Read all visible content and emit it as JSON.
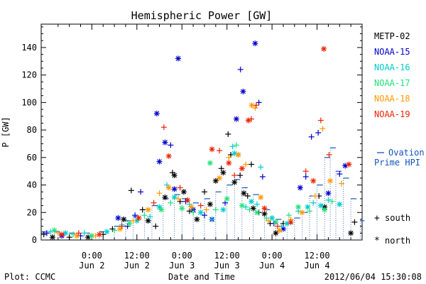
{
  "chart_data": {
    "type": "scatter",
    "title": "Hemispheric Power [GW]",
    "xlabel": "Date and Time",
    "ylabel": "P [GW]",
    "ylim": [
      0,
      157
    ],
    "xlim_hours": [
      -13.5,
      72
    ],
    "yticks": [
      0,
      20,
      40,
      60,
      80,
      100,
      120,
      140
    ],
    "xticks": [
      {
        "h": 0,
        "time": "0:00",
        "day": "Jun 2"
      },
      {
        "h": 12,
        "time": "12:00",
        "day": "Jun 2"
      },
      {
        "h": 24,
        "time": "0:00",
        "day": "Jun 3"
      },
      {
        "h": 36,
        "time": "12:00",
        "day": "Jun 3"
      },
      {
        "h": 48,
        "time": "0:00",
        "day": "Jun 4"
      },
      {
        "h": 60,
        "time": "12:00",
        "day": "Jun 4"
      }
    ],
    "grid": false,
    "legend_position": "right",
    "footer_left": "Plot: CCMC",
    "footer_right": "2012/06/04 15:30:08",
    "ovation_label_line1": "Ovation",
    "ovation_label_line2": "Prime HPI",
    "marker_legend": [
      {
        "symbol": "+",
        "label": "south"
      },
      {
        "symbol": "*",
        "label": "north"
      }
    ],
    "series": [
      {
        "name": "METP-02",
        "color": "#000000",
        "points": [
          [
            -12.8,
            4,
            "+"
          ],
          [
            -10.5,
            2,
            "*"
          ],
          [
            -6,
            2,
            "+"
          ],
          [
            -1,
            2,
            "*"
          ],
          [
            3,
            4,
            "+"
          ],
          [
            5.5,
            8,
            "+"
          ],
          [
            8.5,
            15,
            "*"
          ],
          [
            10.5,
            36,
            "+"
          ],
          [
            13.5,
            22,
            "+"
          ],
          [
            15,
            14,
            "*"
          ],
          [
            17,
            10,
            "+"
          ],
          [
            19.5,
            31,
            "*"
          ],
          [
            21.5,
            49,
            "+"
          ],
          [
            22,
            47,
            "*"
          ],
          [
            23.5,
            28,
            "+"
          ],
          [
            24.5,
            35,
            "*"
          ],
          [
            26,
            21,
            "+"
          ],
          [
            28,
            15,
            "*"
          ],
          [
            30,
            35,
            "+"
          ],
          [
            31.5,
            26,
            "*"
          ],
          [
            33,
            43,
            "*"
          ],
          [
            34.5,
            52,
            "+"
          ],
          [
            35,
            49,
            "*"
          ],
          [
            36.3,
            77,
            "+"
          ],
          [
            37,
            62,
            "+"
          ],
          [
            38,
            42,
            "*"
          ],
          [
            39.5,
            47,
            "+"
          ],
          [
            40.5,
            34,
            "*"
          ],
          [
            41.5,
            32,
            "+"
          ],
          [
            42.5,
            55,
            "+"
          ],
          [
            43,
            23,
            "*"
          ],
          [
            44.5,
            20,
            "+"
          ],
          [
            46,
            19,
            "*"
          ],
          [
            47.5,
            12,
            "+"
          ],
          [
            49,
            5,
            "*"
          ],
          [
            51,
            12,
            "+"
          ],
          [
            60.5,
            32,
            "+"
          ],
          [
            62,
            24,
            "*"
          ],
          [
            69,
            5,
            "*"
          ],
          [
            70,
            13,
            "+"
          ]
        ]
      },
      {
        "name": "NOAA-15",
        "color": "#0000cc",
        "points": [
          [
            -12,
            5,
            "+"
          ],
          [
            -8,
            3,
            "*"
          ],
          [
            -3,
            3,
            "+"
          ],
          [
            7,
            16,
            "*"
          ],
          [
            9.5,
            10,
            "+"
          ],
          [
            11.5,
            18,
            "+"
          ],
          [
            13,
            35,
            "+"
          ],
          [
            17.3,
            92,
            "*"
          ],
          [
            18,
            57,
            "*"
          ],
          [
            19.5,
            71,
            "*"
          ],
          [
            21,
            69,
            "+"
          ],
          [
            22,
            37,
            "*"
          ],
          [
            23,
            132,
            "*"
          ],
          [
            25,
            28,
            "+"
          ],
          [
            27,
            22,
            "*"
          ],
          [
            30,
            18,
            "+"
          ],
          [
            32,
            15,
            "*"
          ],
          [
            35.5,
            27,
            "+"
          ],
          [
            38.5,
            88,
            "*"
          ],
          [
            39.6,
            124,
            "+"
          ],
          [
            40.3,
            108,
            "*"
          ],
          [
            43.5,
            143,
            "*"
          ],
          [
            44.5,
            100,
            "+"
          ],
          [
            45.5,
            46,
            "+"
          ],
          [
            48.5,
            12,
            "+"
          ],
          [
            51,
            8,
            "*"
          ],
          [
            55.5,
            38,
            "*"
          ],
          [
            57,
            46,
            "+"
          ],
          [
            58.5,
            75,
            "+"
          ],
          [
            60.3,
            78,
            "+"
          ],
          [
            63,
            34,
            "*"
          ],
          [
            66,
            48,
            "+"
          ],
          [
            67.5,
            54,
            "*"
          ]
        ]
      },
      {
        "name": "NOAA-16",
        "color": "#00cccc",
        "points": [
          [
            -11,
            6,
            "+"
          ],
          [
            -7,
            5,
            "*"
          ],
          [
            -2,
            5,
            "+"
          ],
          [
            4,
            6,
            "*"
          ],
          [
            8,
            11,
            "+"
          ],
          [
            12,
            14,
            "*"
          ],
          [
            15.5,
            17,
            "+"
          ],
          [
            18,
            24,
            "*"
          ],
          [
            20,
            40,
            "+"
          ],
          [
            22,
            31,
            "*"
          ],
          [
            26,
            26,
            "+"
          ],
          [
            29,
            20,
            "*"
          ],
          [
            32,
            15,
            "+"
          ],
          [
            35,
            22,
            "*"
          ],
          [
            37.5,
            68,
            "+"
          ],
          [
            38,
            63,
            "*"
          ],
          [
            39,
            62,
            "*"
          ],
          [
            41,
            24,
            "+"
          ],
          [
            42.5,
            28,
            "*"
          ],
          [
            44,
            26,
            "+"
          ],
          [
            45,
            53,
            "+"
          ],
          [
            48,
            16,
            "*"
          ],
          [
            50.5,
            10,
            "+"
          ],
          [
            52,
            12,
            "*"
          ],
          [
            55,
            21,
            "+"
          ],
          [
            57.5,
            24,
            "*"
          ],
          [
            59,
            27,
            "+"
          ],
          [
            61,
            25,
            "*"
          ],
          [
            63,
            29,
            "+"
          ],
          [
            66,
            26,
            "*"
          ]
        ]
      },
      {
        "name": "NOAA-17",
        "color": "#22e07a",
        "points": [
          [
            -10,
            7,
            "*"
          ],
          [
            -5,
            4,
            "+"
          ],
          [
            0,
            3,
            "*"
          ],
          [
            6,
            7,
            "+"
          ],
          [
            10,
            12,
            "*"
          ],
          [
            14,
            18,
            "+"
          ],
          [
            18.5,
            22,
            "*"
          ],
          [
            21,
            27,
            "+"
          ],
          [
            24,
            23,
            "*"
          ],
          [
            27,
            20,
            "+"
          ],
          [
            31.5,
            56,
            "*"
          ],
          [
            33,
            22,
            "+"
          ],
          [
            36,
            30,
            "*"
          ],
          [
            38.5,
            69,
            "+"
          ],
          [
            40,
            25,
            "*"
          ],
          [
            42,
            22,
            "+"
          ],
          [
            44,
            20,
            "*"
          ],
          [
            46.5,
            16,
            "+"
          ],
          [
            49,
            13,
            "*"
          ],
          [
            52.5,
            18,
            "+"
          ],
          [
            55,
            24,
            "*"
          ],
          [
            58,
            21,
            "+"
          ],
          [
            62,
            22,
            "*"
          ],
          [
            64,
            28,
            "+"
          ]
        ]
      },
      {
        "name": "NOAA-18",
        "color": "#ff9900",
        "points": [
          [
            -9,
            5,
            "+"
          ],
          [
            -4,
            3,
            "*"
          ],
          [
            1,
            3,
            "+"
          ],
          [
            7.5,
            8,
            "*"
          ],
          [
            11,
            14,
            "+"
          ],
          [
            15,
            22,
            "*"
          ],
          [
            18,
            34,
            "+"
          ],
          [
            20.5,
            38,
            "*"
          ],
          [
            23,
            30,
            "+"
          ],
          [
            26.5,
            24,
            "*"
          ],
          [
            30.5,
            22,
            "+"
          ],
          [
            34,
            45,
            "*"
          ],
          [
            36.5,
            60,
            "+"
          ],
          [
            39,
            62,
            "*"
          ],
          [
            41,
            55,
            "+"
          ],
          [
            42.6,
            98,
            "*"
          ],
          [
            43.5,
            96,
            "+"
          ],
          [
            45,
            31,
            "*"
          ],
          [
            47,
            14,
            "+"
          ],
          [
            50,
            7,
            "*"
          ],
          [
            53,
            15,
            "+"
          ],
          [
            56,
            20,
            "*"
          ],
          [
            59.5,
            32,
            "+"
          ],
          [
            61.5,
            81,
            "+"
          ],
          [
            63.5,
            43,
            "*"
          ],
          [
            66.5,
            41,
            "+"
          ]
        ]
      },
      {
        "name": "NOAA-19",
        "color": "#ee2200",
        "points": [
          [
            -8,
            4,
            "*"
          ],
          [
            -3.5,
            5,
            "+"
          ],
          [
            2,
            4,
            "*"
          ],
          [
            8,
            10,
            "+"
          ],
          [
            12.5,
            16,
            "*"
          ],
          [
            16.5,
            27,
            "+"
          ],
          [
            19.2,
            82,
            "+"
          ],
          [
            20.5,
            61,
            "*"
          ],
          [
            23.5,
            38,
            "+"
          ],
          [
            25.5,
            29,
            "*"
          ],
          [
            29,
            25,
            "+"
          ],
          [
            32,
            66,
            "*"
          ],
          [
            34,
            65,
            "+"
          ],
          [
            36.5,
            56,
            "*"
          ],
          [
            38,
            47,
            "+"
          ],
          [
            40,
            52,
            "*"
          ],
          [
            41.7,
            87,
            "*"
          ],
          [
            42.5,
            88,
            "+"
          ],
          [
            43.8,
            98,
            "+"
          ],
          [
            46,
            23,
            "*"
          ],
          [
            49.5,
            10,
            "+"
          ],
          [
            53,
            13,
            "*"
          ],
          [
            57,
            50,
            "+"
          ],
          [
            59,
            43,
            "*"
          ],
          [
            61,
            87,
            "+"
          ],
          [
            61.8,
            139,
            "*"
          ],
          [
            63.2,
            62,
            "+"
          ],
          [
            68.5,
            55,
            "*"
          ]
        ]
      },
      {
        "name": "Ovation Prime HPI",
        "color": "#1155bb",
        "points": [
          [
            -13.5,
            6,
            "-"
          ],
          [
            -10,
            6,
            "-"
          ],
          [
            -6,
            5,
            "-"
          ],
          [
            -2,
            5,
            "-"
          ],
          [
            2,
            6,
            "-"
          ],
          [
            6,
            10,
            "-"
          ],
          [
            9,
            14,
            "-"
          ],
          [
            11,
            17,
            "-"
          ],
          [
            14,
            22,
            "-"
          ],
          [
            16,
            25,
            "-"
          ],
          [
            19,
            30,
            "-"
          ],
          [
            22,
            33,
            "-"
          ],
          [
            24,
            30,
            "-"
          ],
          [
            27,
            27,
            "-"
          ],
          [
            30,
            30,
            "-"
          ],
          [
            33,
            35,
            "-"
          ],
          [
            36,
            40,
            "-"
          ],
          [
            38,
            44,
            "-"
          ],
          [
            40,
            38,
            "-"
          ],
          [
            43,
            33,
            "-"
          ],
          [
            46,
            22,
            "-"
          ],
          [
            49,
            15,
            "-"
          ],
          [
            52,
            12,
            "-"
          ],
          [
            54,
            16,
            "-"
          ],
          [
            56,
            20,
            "-"
          ],
          [
            58,
            32,
            "-"
          ],
          [
            60,
            40,
            "-"
          ],
          [
            62,
            60,
            "-"
          ],
          [
            63.5,
            67,
            "-"
          ],
          [
            65,
            50,
            "-"
          ],
          [
            67,
            45,
            "-"
          ],
          [
            69,
            30,
            "-"
          ],
          [
            71.5,
            14,
            "-"
          ]
        ]
      }
    ]
  }
}
